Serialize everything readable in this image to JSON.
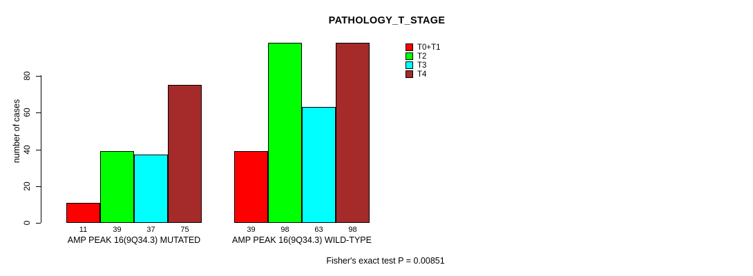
{
  "title": "PATHOLOGY_T_STAGE",
  "footer": "Fisher's exact test P = 0.00851",
  "chart_data": {
    "type": "bar",
    "title": "PATHOLOGY_T_STAGE",
    "xlabel": "",
    "ylabel": "number of cases",
    "ylim": [
      0,
      105
    ],
    "yticks": [
      0,
      20,
      40,
      60,
      80
    ],
    "grid": false,
    "legend_position": "top-right",
    "bar_value_labels_shown": true,
    "categories": [
      "AMP PEAK 16(9Q34.3) MUTATED",
      "AMP PEAK 16(9Q34.3) WILD-TYPE"
    ],
    "series": [
      {
        "name": "T0+T1",
        "color": "#FF0000",
        "values": [
          11,
          39
        ]
      },
      {
        "name": "T2",
        "color": "#00FF00",
        "values": [
          39,
          98
        ]
      },
      {
        "name": "T3",
        "color": "#00FFFF",
        "values": [
          37,
          63
        ]
      },
      {
        "name": "T4",
        "color": "#A52A2A",
        "values": [
          75,
          98
        ]
      }
    ],
    "annotation": "Fisher's exact test P = 0.00851"
  }
}
